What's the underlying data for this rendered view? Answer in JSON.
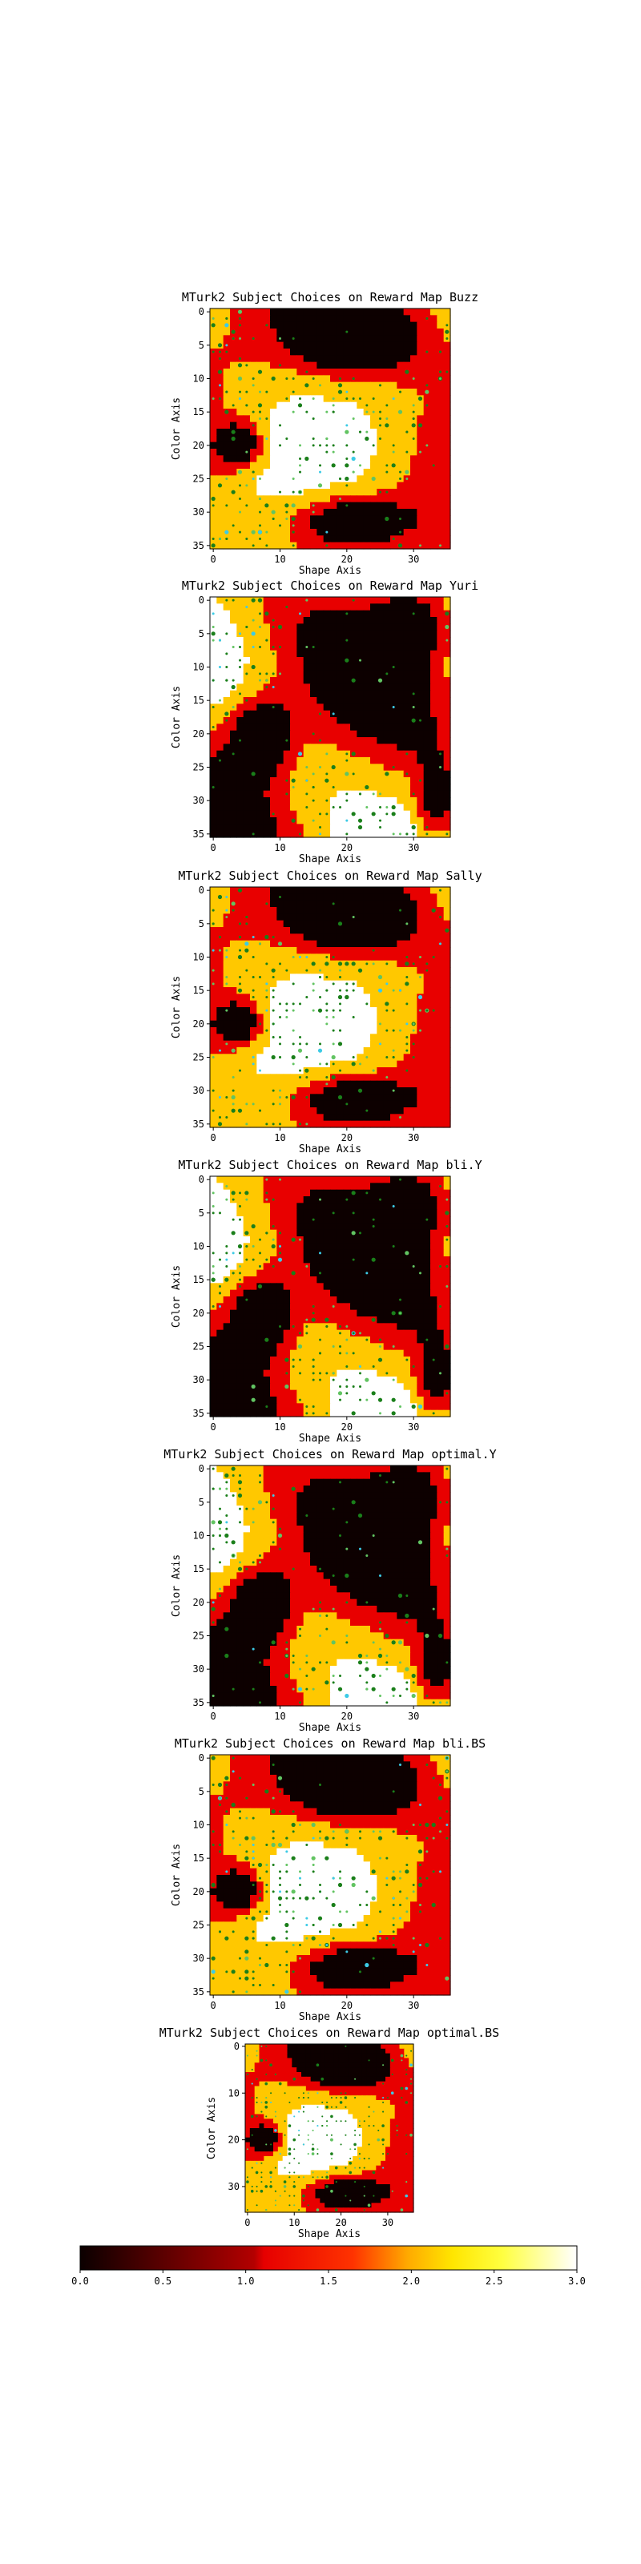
{
  "chart_data": [
    {
      "type": "heatmap",
      "title": "MTurk2 Subject Choices on Reward Map Buzz",
      "xlabel": "Shape Axis",
      "ylabel": "Color Axis",
      "xticks": [
        0,
        10,
        20,
        30
      ],
      "yticks": [
        0,
        5,
        10,
        15,
        20,
        25,
        30,
        35
      ],
      "xlim": [
        0,
        35
      ],
      "ylim": [
        35,
        0
      ],
      "grid_size": 36,
      "overlay": "green and cyan dots mark subject choices"
    },
    {
      "type": "heatmap",
      "title": "MTurk2 Subject Choices on Reward Map Yuri",
      "xlabel": "Shape Axis",
      "ylabel": "Color Axis",
      "xticks": [
        0,
        10,
        20,
        30
      ],
      "yticks": [
        0,
        5,
        10,
        15,
        20,
        25,
        30,
        35
      ],
      "xlim": [
        0,
        35
      ],
      "ylim": [
        35,
        0
      ],
      "grid_size": 36,
      "overlay": "green and cyan dots mark subject choices"
    },
    {
      "type": "heatmap",
      "title": "MTurk2 Subject Choices on Reward Map Sally",
      "xlabel": "Shape Axis",
      "ylabel": "Color Axis",
      "xticks": [
        0,
        10,
        20,
        30
      ],
      "yticks": [
        0,
        5,
        10,
        15,
        20,
        25,
        30,
        35
      ],
      "xlim": [
        0,
        35
      ],
      "ylim": [
        35,
        0
      ],
      "grid_size": 36,
      "overlay": "green and cyan dots mark subject choices"
    },
    {
      "type": "heatmap",
      "title": "MTurk2 Subject Choices on Reward Map bli.Y",
      "xlabel": "Shape Axis",
      "ylabel": "Color Axis",
      "xticks": [
        0,
        10,
        20,
        30
      ],
      "yticks": [
        0,
        5,
        10,
        15,
        20,
        25,
        30,
        35
      ],
      "xlim": [
        0,
        35
      ],
      "ylim": [
        35,
        0
      ],
      "grid_size": 36,
      "overlay": "green and cyan dots mark subject choices"
    },
    {
      "type": "heatmap",
      "title": "MTurk2 Subject Choices on Reward Map optimal.Y",
      "xlabel": "Shape Axis",
      "ylabel": "Color Axis",
      "xticks": [
        0,
        10,
        20,
        30
      ],
      "yticks": [
        0,
        5,
        10,
        15,
        20,
        25,
        30,
        35
      ],
      "xlim": [
        0,
        35
      ],
      "ylim": [
        35,
        0
      ],
      "grid_size": 36,
      "overlay": "green and cyan dots mark subject choices"
    },
    {
      "type": "heatmap",
      "title": "MTurk2 Subject Choices on Reward Map bli.BS",
      "xlabel": "Shape Axis",
      "ylabel": "Color Axis",
      "xticks": [
        0,
        10,
        20,
        30
      ],
      "yticks": [
        0,
        5,
        10,
        15,
        20,
        25,
        30,
        35
      ],
      "xlim": [
        0,
        35
      ],
      "ylim": [
        35,
        0
      ],
      "grid_size": 36,
      "overlay": "green and cyan dots mark subject choices"
    },
    {
      "type": "heatmap",
      "title": "MTurk2 Subject Choices on Reward Map optimal.BS",
      "xlabel": "Shape Axis",
      "ylabel": "Color Axis",
      "xticks": [
        0,
        10,
        20,
        30
      ],
      "yticks": [
        0,
        10,
        20,
        30
      ],
      "xlim": [
        0,
        35
      ],
      "ylim": [
        35,
        0
      ],
      "grid_size": 36,
      "overlay": "green dots mark subject choices"
    }
  ],
  "colorbar": {
    "ticks": [
      "0.0",
      "0.5",
      "1.0",
      "1.5",
      "2.0",
      "2.5",
      "3.0"
    ],
    "range": [
      0,
      3
    ],
    "colormap": "hot",
    "level_colors": [
      "#0d0000",
      "#e80000",
      "#ffc800",
      "#ffffff"
    ],
    "choice_colors": [
      "#1a7f1a",
      "#62c462",
      "#3ccbe6"
    ]
  }
}
